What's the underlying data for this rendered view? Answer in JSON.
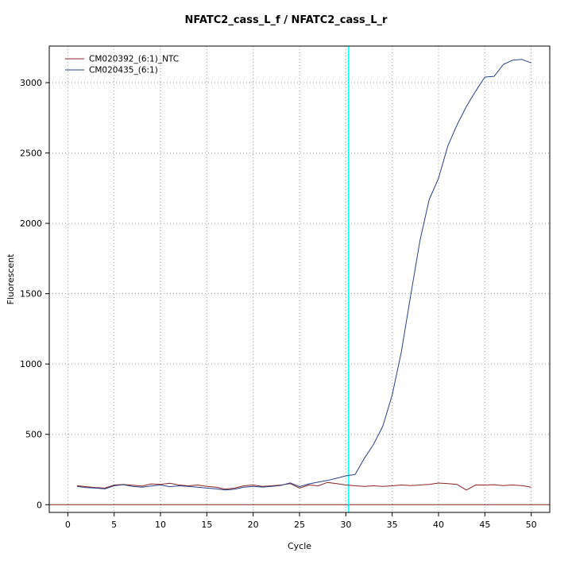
{
  "title": "NFATC2_cass_L_f / NFATC2_cass_L_r",
  "chart_data": {
    "type": "line",
    "title": "NFATC2_cass_L_f / NFATC2_cass_L_r",
    "xlabel": "Cycle",
    "ylabel": "Fluorescent",
    "xlim": [
      -2,
      52
    ],
    "ylim": [
      -55,
      3260
    ],
    "xticks": [
      0,
      5,
      10,
      15,
      20,
      25,
      30,
      35,
      40,
      45,
      50
    ],
    "yticks": [
      0,
      500,
      1000,
      1500,
      2000,
      2500,
      3000
    ],
    "grid": "dotted",
    "grid_color": "#999999",
    "box_color": "#000000",
    "legend_position": "top-left",
    "threshold_line": {
      "x": 30.3,
      "color": "#00ffff"
    },
    "baseline": {
      "y": 0,
      "color": "#8b2323"
    },
    "x": [
      1,
      2,
      3,
      4,
      5,
      6,
      7,
      8,
      9,
      10,
      11,
      12,
      13,
      14,
      15,
      16,
      17,
      18,
      19,
      20,
      21,
      22,
      23,
      24,
      25,
      26,
      27,
      28,
      29,
      30,
      31,
      32,
      33,
      34,
      35,
      36,
      37,
      38,
      39,
      40,
      41,
      42,
      43,
      44,
      45,
      46,
      47,
      48,
      49,
      50
    ],
    "series": [
      {
        "name": "CM020392_(6:1)_NTC",
        "color": "#8b2323",
        "values": [
          135,
          128,
          122,
          118,
          140,
          143,
          138,
          132,
          148,
          144,
          152,
          140,
          134,
          140,
          130,
          124,
          110,
          118,
          134,
          140,
          130,
          134,
          140,
          150,
          118,
          140,
          134,
          158,
          150,
          140,
          134,
          130,
          134,
          130,
          134,
          140,
          136,
          140,
          144,
          154,
          150,
          144,
          104,
          140,
          140,
          142,
          136,
          140,
          136,
          124
        ]
      },
      {
        "name": "CM020435_(6:1)",
        "color": "#27408b",
        "values": [
          130,
          122,
          118,
          112,
          135,
          142,
          130,
          124,
          133,
          140,
          128,
          134,
          130,
          124,
          118,
          112,
          104,
          110,
          124,
          130,
          125,
          130,
          137,
          155,
          128,
          148,
          160,
          172,
          188,
          205,
          215,
          330,
          430,
          560,
          780,
          1090,
          1490,
          1880,
          2170,
          2320,
          2550,
          2700,
          2830,
          2940,
          3040,
          3045,
          3130,
          3160,
          3165,
          3140
        ]
      }
    ]
  }
}
